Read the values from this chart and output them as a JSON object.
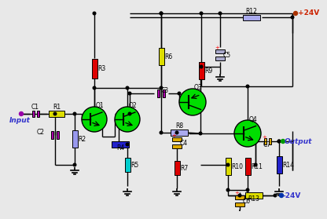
{
  "bg_color": "#e8e8e8",
  "wire_color": "#000000",
  "transistor_fill": "#00dd00",
  "transistor_edge": "#000000",
  "resistor_colors": {
    "R1": "#dddd00",
    "R2": "#9999ee",
    "R3": "#dd0000",
    "R4": "#2222cc",
    "R5": "#00cccc",
    "R6": "#dddd00",
    "R7": "#dd0000",
    "R8": "#aaaaee",
    "R9": "#dd0000",
    "R10": "#dddd00",
    "R11": "#dd0000",
    "R12": "#aaaaee",
    "R13": "#dddd00",
    "R14": "#2222cc"
  },
  "capacitor_colors": {
    "C1": "#aa00aa",
    "C2": "#aa00aa",
    "C3": "#aa00aa",
    "C4": "#ddaa00",
    "C5": "#aaaacc",
    "C6": "#ddaa00",
    "C7": "#ddaa00"
  },
  "input_label": "Input",
  "output_label": "Output",
  "vplus_label": "+24V",
  "vminus_label": "-24V"
}
